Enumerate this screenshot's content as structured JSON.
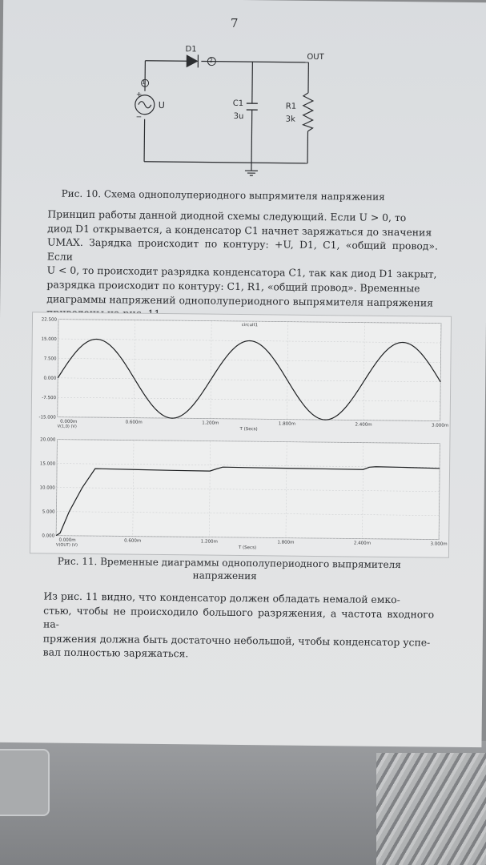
{
  "page_number": "7",
  "circuit": {
    "diode_label": "D1",
    "node_label": "2",
    "out_label": "OUT",
    "source_node": "1",
    "source_label": "U",
    "plus": "+",
    "minus": "−",
    "cap_label": "C1",
    "cap_value": "3u",
    "res_label": "R1",
    "res_value": "3k"
  },
  "fig10_caption": "Рис. 10. Схема однополупериодного выпрямителя напряжения",
  "paragraph1": [
    "Принцип работы данной диодной схемы следующий. Если U > 0, то",
    "диод D1 открывается, а конденсатор C1 начнет заряжаться до значения",
    "UMAX. Зарядка происходит по контуру: +U, D1, C1, «общий провод». Если",
    "U < 0, то происходит разрядка конденсатора C1, так как диод D1 закрыт,",
    "разрядка происходит по контуру: C1, R1, «общий провод». Временные",
    "диаграммы напряжений однополупериодного выпрямителя напряжения",
    "приведены на рис. 11."
  ],
  "chart_data": [
    {
      "type": "line",
      "title": "circuit1",
      "xlabel": "T (Secs)",
      "ylabel": "",
      "series_label": "V(1,0) (V)",
      "xlim": [
        0,
        3.0
      ],
      "ylim": [
        -15.0,
        22.5
      ],
      "y_ticks": [
        "22.500",
        "15.000",
        "7.500",
        "0.000",
        "-7.500",
        "-15.000"
      ],
      "x_ticks": [
        "0.000m",
        "0.600m",
        "1.200m",
        "1.800m",
        "2.400m",
        "3.000m"
      ],
      "series": [
        {
          "name": "V(1,0)",
          "x": [
            0.0,
            0.15,
            0.3,
            0.45,
            0.6,
            0.75,
            0.9,
            1.05,
            1.2,
            1.35,
            1.5,
            1.65,
            1.8,
            1.95,
            2.1,
            2.25,
            2.4,
            2.55,
            2.7,
            2.85,
            3.0
          ],
          "y": [
            0.0,
            10.6,
            15.0,
            10.6,
            0.0,
            -10.6,
            -15.0,
            -10.6,
            0.0,
            10.6,
            15.0,
            10.6,
            0.0,
            -10.6,
            -15.0,
            -10.6,
            0.0,
            10.6,
            15.0,
            10.6,
            0.0
          ]
        }
      ]
    },
    {
      "type": "line",
      "xlabel": "T (Secs)",
      "ylabel": "",
      "series_label": "V(OUT) (V)",
      "xlim": [
        0,
        3.0
      ],
      "ylim": [
        0,
        20.0
      ],
      "y_ticks": [
        "20.000",
        "15.000",
        "10.000",
        "5.000",
        "0.000"
      ],
      "x_ticks": [
        "0.000m",
        "0.600m",
        "1.200m",
        "1.800m",
        "2.400m",
        "3.000m"
      ],
      "series": [
        {
          "name": "V(OUT)",
          "x": [
            0.0,
            0.03,
            0.1,
            0.2,
            0.3,
            0.6,
            0.9,
            1.2,
            1.25,
            1.3,
            1.5,
            1.8,
            2.1,
            2.4,
            2.45,
            2.5,
            2.7,
            3.0
          ],
          "y": [
            0.0,
            0.5,
            5.0,
            10.0,
            14.0,
            13.9,
            13.8,
            13.75,
            14.2,
            14.6,
            14.55,
            14.5,
            14.45,
            14.4,
            14.9,
            15.0,
            14.95,
            14.8
          ]
        }
      ]
    }
  ],
  "fig11_caption": [
    "Рис. 11. Временные диаграммы однополупериодного выпрямителя",
    "напряжения"
  ],
  "paragraph2": [
    "Из рис. 11 видно, что конденсатор должен обладать немалой емко-",
    "стью, чтобы не происходило большого разряжения, а частота входного на-",
    "пряжения должна быть достаточно небольшой, чтобы конденсатор успе-",
    "вал полностью заряжаться."
  ]
}
